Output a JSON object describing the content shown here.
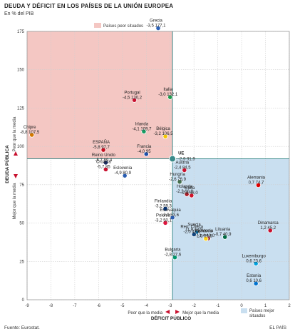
{
  "header": {
    "title": "DEUDA Y DÉFICIT EN LOS PAÍSES DE LA UNIÓN EUROPEA",
    "subtitle": "En % del PIB"
  },
  "footer": {
    "source": "Fuente: Eurostat.",
    "credit": "EL PAÍS"
  },
  "chart_data": {
    "type": "scatter",
    "title": "DEUDA Y DÉFICIT EN LOS PAÍSES DE LA UNIÓN EUROPEA",
    "subtitle": "En % del PIB",
    "xlabel": "DÉFICIT PÚBLICO",
    "ylabel": "DEUDA PÚBLICA",
    "xlim": [
      -9,
      2
    ],
    "ylim": [
      0,
      175
    ],
    "x_ticks": [
      -9,
      -8,
      -7,
      -6,
      -5,
      -4,
      -3,
      -2,
      -1,
      0,
      1,
      2
    ],
    "y_ticks": [
      0,
      25,
      50,
      75,
      100,
      125,
      150,
      175
    ],
    "reference": {
      "name": "UE",
      "x": -2.9,
      "y": 91.9,
      "label": "-2,9  91,9"
    },
    "regions": [
      {
        "name": "Países peor situados",
        "color": "#f4c7c3"
      },
      {
        "name": "Países mejor situados",
        "color": "#c9dff0"
      }
    ],
    "direction_labels": {
      "y_worse": "Peor que la media",
      "y_better": "Mejor que la media",
      "x_worse": "Peor que la media",
      "x_better": "Mejor que la media"
    },
    "points": [
      {
        "name": "Grecia",
        "x": -3.5,
        "y": 177.1,
        "label": "-3,5  177,1",
        "flag": "#2b62b8"
      },
      {
        "name": "Italia",
        "x": -3.0,
        "y": 132.1,
        "label": "-3,0  132,1",
        "flag": "#1e9a4c"
      },
      {
        "name": "Portugal",
        "x": -4.5,
        "y": 130.2,
        "label": "-4,5  130,2",
        "flag": "#c8102e"
      },
      {
        "name": "Irlanda",
        "x": -4.1,
        "y": 109.7,
        "label": "-4,1  109,7",
        "flag": "#169b62"
      },
      {
        "name": "Bélgica",
        "x": -3.2,
        "y": 106.5,
        "label": "-3,2  106,5",
        "flag": "#f5c400"
      },
      {
        "name": "Chipre",
        "x": -8.8,
        "y": 107.5,
        "label": "-8,8  107,5",
        "flag": "#d57800"
      },
      {
        "name": "ESPAÑA",
        "x": -5.8,
        "y": 97.7,
        "label": "-5,8  97,7",
        "flag": "#c60b1e"
      },
      {
        "name": "Francia",
        "x": -4.0,
        "y": 95.0,
        "label": "-4,0  95",
        "flag": "#1f4fa8"
      },
      {
        "name": "Reino Unido",
        "x": -5.7,
        "y": 89.4,
        "label": "-5,7  89,4",
        "flag": "#1a2f6b"
      },
      {
        "name": "Croacia",
        "x": -5.7,
        "y": 85.0,
        "label": "-5,7  85",
        "flag": "#c8102e"
      },
      {
        "name": "Eslovenia",
        "x": -4.9,
        "y": 80.9,
        "label": "-4,9  80,9",
        "flag": "#2a5db0"
      },
      {
        "name": "Austria",
        "x": -2.4,
        "y": 84.5,
        "label": "-2,4  84,5",
        "flag": "#c8102e"
      },
      {
        "name": "Hungría",
        "x": -2.6,
        "y": 76.9,
        "label": "-2,6  76,9",
        "flag": "#436f4d"
      },
      {
        "name": "Alemania",
        "x": 0.7,
        "y": 74.7,
        "label": "0,7  74,7",
        "flag": "#dd0000"
      },
      {
        "name": "Holanda",
        "x": -2.3,
        "y": 68.8,
        "label": "-2,3  68,8",
        "flag": "#ae1c28"
      },
      {
        "name": "Malta",
        "x": -2.1,
        "y": 68.0,
        "label": "-2,1  68,0",
        "flag": "#cf142b"
      },
      {
        "name": "Finlandia",
        "x": -3.2,
        "y": 59.3,
        "label": "-3,2  59,3",
        "flag": "#003580"
      },
      {
        "name": "Eslovaquia",
        "x": -2.9,
        "y": 53.6,
        "label": "-2,9  53,6",
        "flag": "#2a5db0"
      },
      {
        "name": "Polonia",
        "x": -3.2,
        "y": 50.1,
        "label": "-3,2  50,1",
        "flag": "#dc143c"
      },
      {
        "name": "Dinamarca",
        "x": 1.2,
        "y": 45.2,
        "label": "1,2  45,2",
        "flag": "#c8102e"
      },
      {
        "name": "Suecia",
        "x": -1.9,
        "y": 43.9,
        "label": "-1,9  43,9",
        "flag": "#006aa7"
      },
      {
        "name": "Lituania",
        "x": -0.7,
        "y": 40.9,
        "label": "-0,7  40,9",
        "flag": "#006a44"
      },
      {
        "name": "Rep. Checa",
        "x": -2.0,
        "y": 42.6,
        "label": "-2,0  42,6",
        "flag": "#11457e"
      },
      {
        "name": "Letonia",
        "x": -1.4,
        "y": 40.0,
        "label": "-1,4  40,0",
        "flag": "#9e3039"
      },
      {
        "name": "Rumanía",
        "x": -1.5,
        "y": 39.8,
        "label": "-1,5  39,8",
        "flag": "#fcd116"
      },
      {
        "name": "Bulgaria",
        "x": -2.8,
        "y": 27.6,
        "label": "-2,8  27,6",
        "flag": "#00966e"
      },
      {
        "name": "Luxemburgo",
        "x": 0.6,
        "y": 23.6,
        "label": "0,6  23,6",
        "flag": "#00a1de"
      },
      {
        "name": "Estonia",
        "x": 0.6,
        "y": 10.6,
        "label": "0,6  10,6",
        "flag": "#0072ce"
      }
    ]
  }
}
